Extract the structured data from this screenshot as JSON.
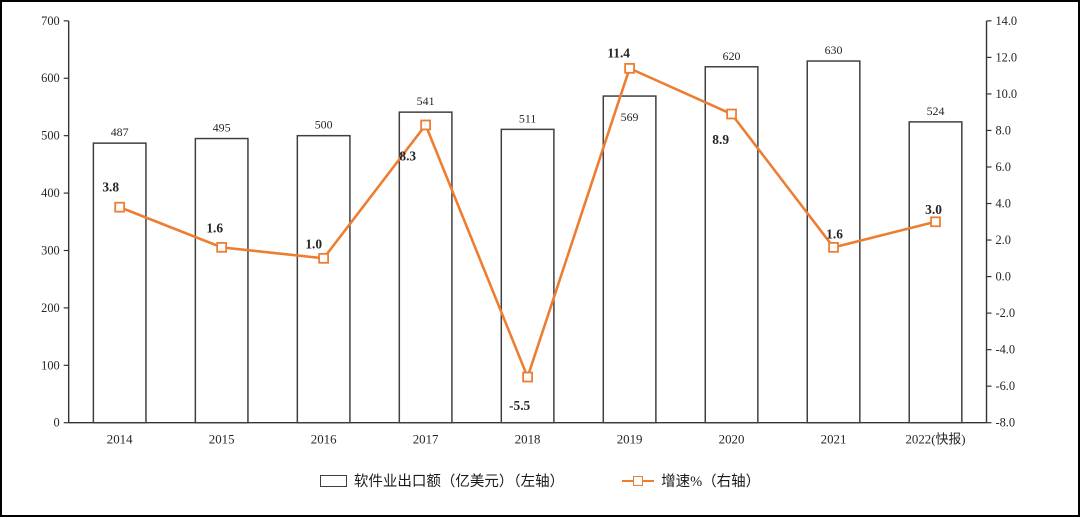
{
  "chart_data": {
    "type": "bar",
    "subtype": "bar-line-combo",
    "title": "",
    "xlabel": "",
    "ylabel": "",
    "categories": [
      "2014",
      "2015",
      "2016",
      "2017",
      "2018",
      "2019",
      "2020",
      "2021",
      "2022(快报)"
    ],
    "series": [
      {
        "name": "软件业出口额（亿美元）（左轴）",
        "type": "bar",
        "axis": "left",
        "values": [
          487,
          495,
          500,
          541,
          511,
          569,
          620,
          630,
          524
        ],
        "labels": [
          "487",
          "495",
          "500",
          "541",
          "511",
          "569",
          "620",
          "630",
          "524"
        ]
      },
      {
        "name": "增速%（右轴）",
        "type": "line",
        "axis": "right",
        "values": [
          3.8,
          1.6,
          1.0,
          8.3,
          -5.5,
          11.4,
          8.9,
          1.6,
          3.0
        ],
        "labels": [
          "3.8",
          "1.6",
          "1.0",
          "8.3",
          "-5.5",
          "11.4",
          "8.9",
          "1.6",
          "3.0"
        ]
      }
    ],
    "left_axis": {
      "min": 0,
      "max": 700,
      "step": 100,
      "decimals": 0
    },
    "right_axis": {
      "min": -8,
      "max": 14,
      "step": 2,
      "decimals": 1
    },
    "grid": "off",
    "legend_position": "bottom",
    "colors": {
      "bar_fill": "#ffffff",
      "bar_border": "#3f3f3f",
      "line": "#ed7d31",
      "marker_fill": "#ffffff",
      "axis": "#333333",
      "text": "#262626"
    }
  }
}
